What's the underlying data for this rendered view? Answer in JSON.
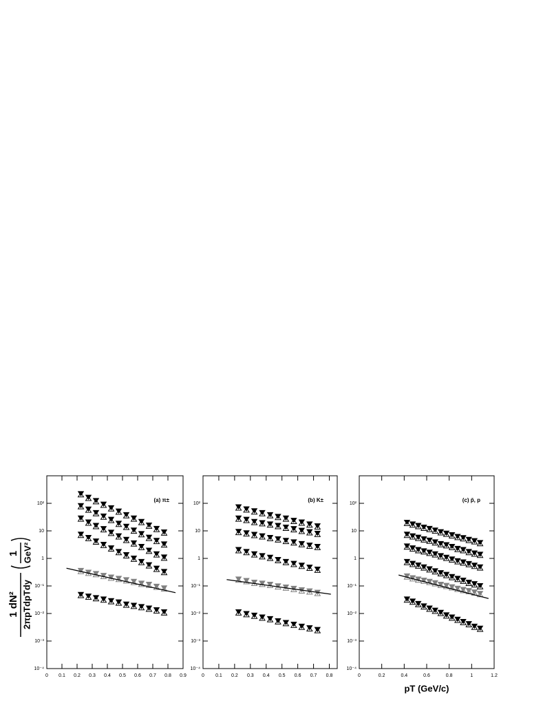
{
  "chart_data": [
    {
      "type": "scatter",
      "label": "(a) π±",
      "ylabel": {
        "numerator": "1   dN²",
        "denominator": "2πpTdpTdy",
        "unit_numerator": "1",
        "unit_denominator": "GeV²"
      },
      "x": [
        0.225,
        0.275,
        0.325,
        0.375,
        0.425,
        0.475,
        0.525,
        0.575,
        0.625,
        0.675,
        0.725,
        0.775
      ],
      "series": [
        {
          "color": "#000000",
          "values": [
            214,
            158,
            120,
            89,
            66,
            50,
            37,
            28,
            21,
            15.5,
            11.7,
            8.7
          ]
        },
        {
          "color": "#000000",
          "values": [
            79,
            59,
            44,
            33,
            25,
            18,
            14,
            10.2,
            7.6,
            5.6,
            4.3,
            3.2
          ]
        },
        {
          "color": "#000000",
          "values": [
            28,
            20,
            15,
            11.5,
            8.5,
            6.3,
            4.7,
            3.5,
            2.6,
            1.9,
            1.4,
            1.07
          ]
        },
        {
          "color": "#000000",
          "values": [
            7.2,
            5.5,
            4.1,
            3.1,
            2.3,
            1.7,
            1.3,
            0.98,
            0.74,
            0.56,
            0.42,
            0.32
          ]
        },
        {
          "color": "#808080",
          "values": [
            0.35,
            0.3,
            0.27,
            0.23,
            0.2,
            0.18,
            0.16,
            0.14,
            0.12,
            0.11,
            0.093,
            0.081
          ]
        },
        {
          "color": "#000000",
          "values": [
            0.047,
            0.041,
            0.036,
            0.032,
            0.028,
            0.025,
            0.021,
            0.019,
            0.017,
            0.015,
            0.013,
            0.011
          ]
        }
      ],
      "fit": {
        "color": "#000000",
        "x": [
          0.13,
          0.85
        ],
        "values": [
          0.44,
          0.057
        ]
      },
      "xlim": [
        0,
        0.9
      ],
      "xticks": [
        0,
        0.1,
        0.2,
        0.3,
        0.4,
        0.5,
        0.6,
        0.7,
        0.8,
        0.9
      ],
      "ylim": [
        0.0001,
        1000
      ],
      "log_y": true,
      "yticks": [
        {
          "value": 0.0001,
          "label": "10⁻⁴"
        },
        {
          "value": 0.001,
          "label": "10⁻³"
        },
        {
          "value": 0.01,
          "label": "10⁻²"
        },
        {
          "value": 0.1,
          "label": "10⁻¹"
        },
        1,
        10,
        {
          "value": 100,
          "label": "10²"
        }
      ]
    },
    {
      "type": "scatter",
      "label": "(b) K±",
      "x": [
        0.225,
        0.275,
        0.325,
        0.375,
        0.425,
        0.475,
        0.525,
        0.575,
        0.625,
        0.675,
        0.725
      ],
      "series": [
        {
          "color": "#000000",
          "values": [
            71,
            60,
            51,
            44,
            37,
            32,
            28,
            23,
            20,
            17,
            14.5
          ]
        },
        {
          "color": "#000000",
          "values": [
            28,
            25,
            21,
            19,
            17,
            15,
            13,
            11.5,
            10,
            8.9,
            7.8
          ]
        },
        {
          "color": "#000000",
          "values": [
            9.1,
            8.1,
            7.1,
            6.3,
            5.5,
            4.9,
            4.3,
            3.8,
            3.3,
            2.9,
            2.6
          ]
        },
        {
          "color": "#000000",
          "values": [
            2,
            1.7,
            1.4,
            1.2,
            1.05,
            0.87,
            0.74,
            0.63,
            0.54,
            0.46,
            0.39
          ]
        },
        {
          "color": "#808080",
          "values": [
            0.17,
            0.15,
            0.13,
            0.12,
            0.11,
            0.096,
            0.087,
            0.078,
            0.069,
            0.063,
            0.056
          ]
        },
        {
          "color": "#000000",
          "values": [
            0.011,
            0.0095,
            0.0083,
            0.0071,
            0.0062,
            0.0052,
            0.0045,
            0.0039,
            0.0033,
            0.0029,
            0.0025
          ]
        }
      ],
      "fit": {
        "color": "#000000",
        "x": [
          0.15,
          0.81
        ],
        "values": [
          0.17,
          0.05
        ]
      },
      "xlim": [
        0,
        0.85
      ],
      "xticks": [
        0,
        0.1,
        0.2,
        0.3,
        0.4,
        0.5,
        0.6,
        0.7,
        0.8
      ],
      "ylim": [
        0.0001,
        1000
      ],
      "log_y": true,
      "yticks": [
        {
          "value": 0.0001,
          "label": "10⁻⁴"
        },
        {
          "value": 0.001,
          "label": "10⁻³"
        },
        {
          "value": 0.01,
          "label": "10⁻²"
        },
        {
          "value": 0.1,
          "label": "10⁻¹"
        },
        1,
        10,
        {
          "value": 100,
          "label": "10²"
        }
      ]
    },
    {
      "type": "scatter",
      "label": "(c) p̄, p",
      "xlabel": "pT (GeV/c)",
      "x": [
        0.425,
        0.475,
        0.525,
        0.575,
        0.625,
        0.675,
        0.725,
        0.775,
        0.825,
        0.875,
        0.925,
        0.975,
        1.025,
        1.075
      ],
      "series": [
        {
          "color": "#000000",
          "values": [
            19.5,
            17,
            15,
            13,
            11.7,
            10.2,
            8.9,
            7.9,
            6.9,
            6,
            5.4,
            4.7,
            4.2,
            3.6
          ]
        },
        {
          "color": "#000000",
          "values": [
            7.2,
            6.3,
            5.6,
            4.9,
            4.4,
            3.8,
            3.3,
            3,
            2.6,
            2.2,
            2,
            1.7,
            1.5,
            1.35
          ]
        },
        {
          "color": "#000000",
          "values": [
            2.7,
            2.3,
            2,
            1.8,
            1.6,
            1.4,
            1.2,
            1.05,
            0.91,
            0.79,
            0.71,
            0.62,
            0.54,
            0.47
          ]
        },
        {
          "color": "#000000",
          "values": [
            0.74,
            0.63,
            0.55,
            0.47,
            0.4,
            0.34,
            0.29,
            0.25,
            0.21,
            0.18,
            0.155,
            0.13,
            0.115,
            0.098
          ]
        },
        {
          "color": "#808080",
          "values": [
            0.22,
            0.19,
            0.17,
            0.155,
            0.14,
            0.125,
            0.11,
            0.1,
            0.089,
            0.079,
            0.071,
            0.065,
            0.058,
            0.051
          ]
        },
        {
          "color": "#000000",
          "values": [
            0.032,
            0.027,
            0.022,
            0.018,
            0.015,
            0.0126,
            0.0105,
            0.0085,
            0.0071,
            0.0059,
            0.0049,
            0.0041,
            0.0033,
            0.0028
          ]
        }
      ],
      "fit": {
        "color": "#000000",
        "x": [
          0.35,
          1.15
        ],
        "values": [
          0.25,
          0.035
        ]
      },
      "xlim": [
        0,
        1.2
      ],
      "xticks": [
        0,
        0.2,
        0.4,
        0.6,
        0.8,
        1,
        1.2
      ],
      "ylim": [
        0.0001,
        1000
      ],
      "log_y": true,
      "yticks": [
        {
          "value": 0.0001,
          "label": "10⁻⁴"
        },
        {
          "value": 0.001,
          "label": "10⁻³"
        },
        {
          "value": 0.01,
          "label": "10⁻²"
        },
        {
          "value": 0.1,
          "label": "10⁻¹"
        },
        1,
        10,
        {
          "value": 100,
          "label": "10²"
        }
      ]
    }
  ]
}
